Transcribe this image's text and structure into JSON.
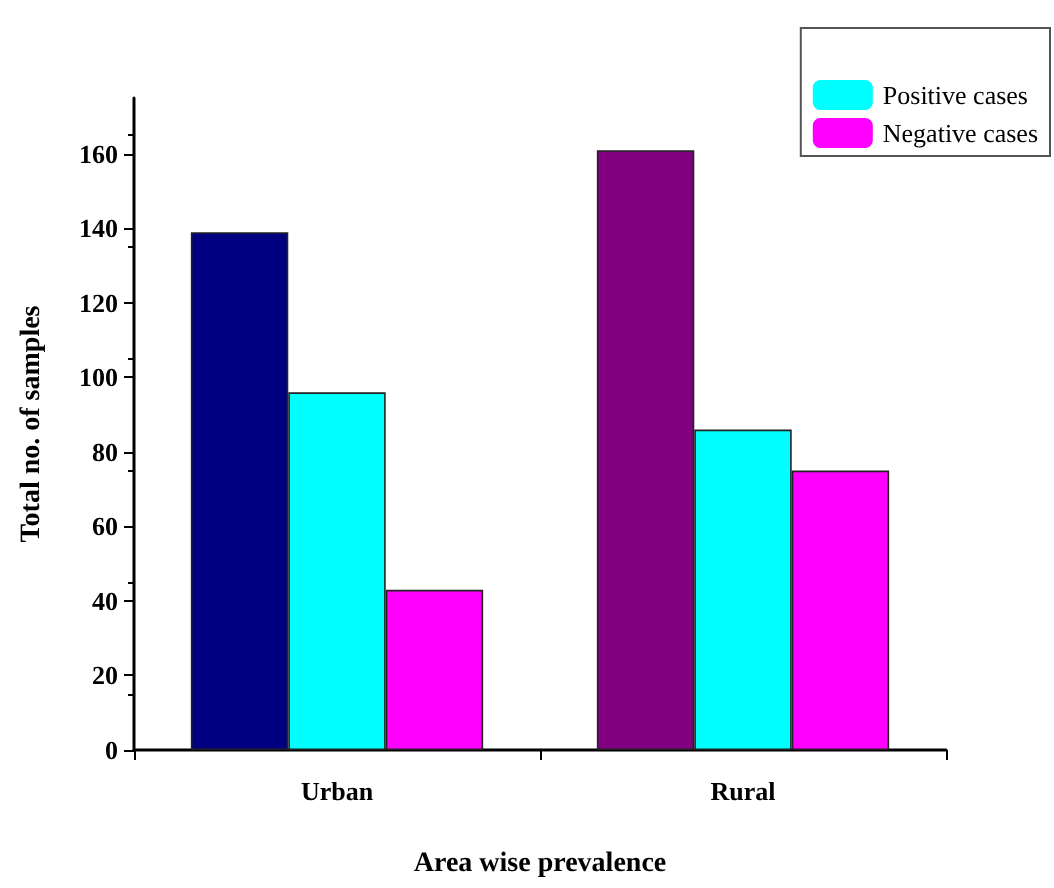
{
  "chart_data": {
    "type": "bar",
    "xlabel": "Area wise prevalence",
    "ylabel": "Total no. of samples",
    "categories": [
      "Urban",
      "Rural"
    ],
    "series": [
      {
        "colors": [
          "#000080",
          "#800080"
        ],
        "values": [
          139,
          161
        ]
      },
      {
        "name": "Positive cases",
        "color": "#00ffff",
        "values": [
          96,
          86
        ]
      },
      {
        "name": "Negative cases",
        "color": "#ff00ff",
        "values": [
          43,
          75
        ]
      }
    ],
    "ylim": [
      0,
      175
    ],
    "yticks": [
      0,
      20,
      40,
      60,
      80,
      100,
      120,
      140,
      160
    ],
    "grid": false,
    "legend": "top right"
  }
}
